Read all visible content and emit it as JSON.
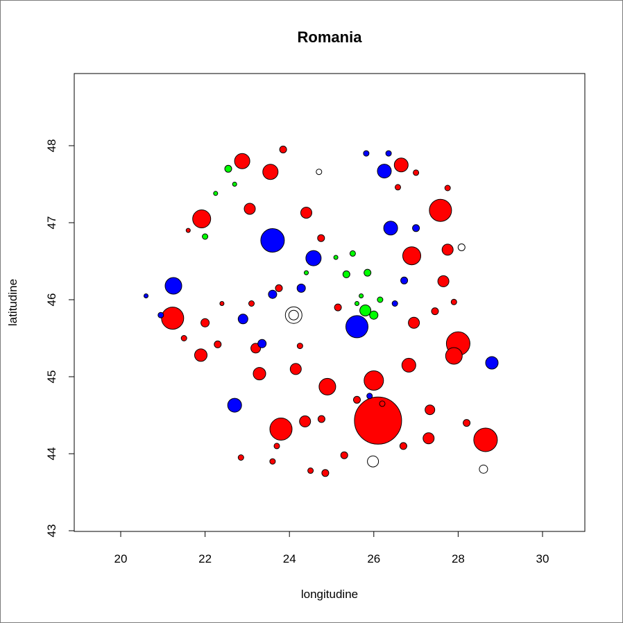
{
  "chart_data": {
    "type": "scatter",
    "title": "Romania",
    "xlabel": "longitudine",
    "ylabel": "latitudine",
    "xlim": [
      19,
      31
    ],
    "ylim": [
      43,
      49.2
    ],
    "xticks": [
      "20",
      "22",
      "24",
      "26",
      "28",
      "30"
    ],
    "yticks": [
      "43",
      "44",
      "45",
      "46",
      "47",
      "48"
    ],
    "grid": false,
    "legend": "none",
    "colors": {
      "red": "#ff0000",
      "blue": "#0000ff",
      "green": "#00ff00",
      "white": "#ffffff",
      "outline": "#000000"
    },
    "points": [
      {
        "x": 26.1,
        "y": 44.43,
        "s": 34,
        "c": "red"
      },
      {
        "x": 27.58,
        "y": 47.16,
        "s": 16,
        "c": "red"
      },
      {
        "x": 28.65,
        "y": 44.18,
        "s": 17,
        "c": "red"
      },
      {
        "x": 21.23,
        "y": 45.76,
        "s": 16,
        "c": "red"
      },
      {
        "x": 23.6,
        "y": 46.77,
        "s": 17,
        "c": "blue"
      },
      {
        "x": 23.8,
        "y": 44.32,
        "s": 16,
        "c": "red"
      },
      {
        "x": 25.6,
        "y": 45.65,
        "s": 16,
        "c": "blue"
      },
      {
        "x": 28.0,
        "y": 45.43,
        "s": 17,
        "c": "red"
      },
      {
        "x": 27.9,
        "y": 45.27,
        "s": 12,
        "c": "red"
      },
      {
        "x": 26.0,
        "y": 44.95,
        "s": 14,
        "c": "red"
      },
      {
        "x": 26.9,
        "y": 46.57,
        "s": 13,
        "c": "red"
      },
      {
        "x": 21.92,
        "y": 47.05,
        "s": 13,
        "c": "red"
      },
      {
        "x": 21.25,
        "y": 46.18,
        "s": 12,
        "c": "blue"
      },
      {
        "x": 24.57,
        "y": 46.54,
        "s": 11,
        "c": "blue"
      },
      {
        "x": 22.7,
        "y": 44.63,
        "s": 10,
        "c": "blue"
      },
      {
        "x": 24.9,
        "y": 44.87,
        "s": 12,
        "c": "red"
      },
      {
        "x": 26.83,
        "y": 45.15,
        "s": 10,
        "c": "red"
      },
      {
        "x": 26.4,
        "y": 46.93,
        "s": 10,
        "c": "blue"
      },
      {
        "x": 26.25,
        "y": 47.67,
        "s": 10,
        "c": "blue"
      },
      {
        "x": 28.8,
        "y": 45.18,
        "s": 9,
        "c": "blue"
      },
      {
        "x": 23.55,
        "y": 47.66,
        "s": 11,
        "c": "red"
      },
      {
        "x": 22.88,
        "y": 47.8,
        "s": 11,
        "c": "red"
      },
      {
        "x": 21.9,
        "y": 45.28,
        "s": 9,
        "c": "red"
      },
      {
        "x": 26.65,
        "y": 47.75,
        "s": 10,
        "c": "red"
      },
      {
        "x": 25.8,
        "y": 45.86,
        "s": 8,
        "c": "green"
      },
      {
        "x": 24.1,
        "y": 45.8,
        "s": 12,
        "c": "white"
      },
      {
        "x": 25.98,
        "y": 43.9,
        "s": 8,
        "c": "white"
      },
      {
        "x": 24.1,
        "y": 45.8,
        "s": 7,
        "c": "white"
      },
      {
        "x": 28.6,
        "y": 43.8,
        "s": 6,
        "c": "white"
      },
      {
        "x": 27.65,
        "y": 46.24,
        "s": 8,
        "c": "red"
      },
      {
        "x": 27.75,
        "y": 46.65,
        "s": 8,
        "c": "red"
      },
      {
        "x": 27.33,
        "y": 44.57,
        "s": 7,
        "c": "red"
      },
      {
        "x": 27.3,
        "y": 44.2,
        "s": 8,
        "c": "red"
      },
      {
        "x": 24.37,
        "y": 44.42,
        "s": 8,
        "c": "red"
      },
      {
        "x": 23.29,
        "y": 45.04,
        "s": 9,
        "c": "red"
      },
      {
        "x": 23.06,
        "y": 47.18,
        "s": 8,
        "c": "red"
      },
      {
        "x": 24.4,
        "y": 47.13,
        "s": 8,
        "c": "red"
      },
      {
        "x": 24.15,
        "y": 45.1,
        "s": 8,
        "c": "red"
      },
      {
        "x": 22.9,
        "y": 45.75,
        "s": 7,
        "c": "blue"
      },
      {
        "x": 23.2,
        "y": 45.37,
        "s": 7,
        "c": "red"
      },
      {
        "x": 26.95,
        "y": 45.7,
        "s": 8,
        "c": "red"
      },
      {
        "x": 26.0,
        "y": 45.8,
        "s": 6,
        "c": "green"
      },
      {
        "x": 22.0,
        "y": 45.7,
        "s": 6,
        "c": "red"
      },
      {
        "x": 22.3,
        "y": 45.42,
        "s": 5,
        "c": "red"
      },
      {
        "x": 23.35,
        "y": 45.43,
        "s": 6,
        "c": "blue"
      },
      {
        "x": 23.6,
        "y": 46.07,
        "s": 6,
        "c": "blue"
      },
      {
        "x": 24.28,
        "y": 46.15,
        "s": 6,
        "c": "blue"
      },
      {
        "x": 24.76,
        "y": 44.45,
        "s": 5,
        "c": "red"
      },
      {
        "x": 25.3,
        "y": 43.98,
        "s": 5,
        "c": "red"
      },
      {
        "x": 26.7,
        "y": 44.1,
        "s": 5,
        "c": "red"
      },
      {
        "x": 27.0,
        "y": 46.93,
        "s": 5,
        "c": "blue"
      },
      {
        "x": 26.72,
        "y": 46.25,
        "s": 5,
        "c": "blue"
      },
      {
        "x": 27.45,
        "y": 45.85,
        "s": 5,
        "c": "red"
      },
      {
        "x": 22.55,
        "y": 47.7,
        "s": 5,
        "c": "green"
      },
      {
        "x": 22.0,
        "y": 46.82,
        "s": 4,
        "c": "green"
      },
      {
        "x": 25.5,
        "y": 46.6,
        "s": 4,
        "c": "green"
      },
      {
        "x": 25.85,
        "y": 46.35,
        "s": 5,
        "c": "green"
      },
      {
        "x": 25.35,
        "y": 46.33,
        "s": 5,
        "c": "green"
      },
      {
        "x": 23.85,
        "y": 47.95,
        "s": 5,
        "c": "red"
      },
      {
        "x": 24.7,
        "y": 47.66,
        "s": 4,
        "c": "white"
      },
      {
        "x": 28.08,
        "y": 46.68,
        "s": 5,
        "c": "white"
      },
      {
        "x": 24.5,
        "y": 43.78,
        "s": 4,
        "c": "red"
      },
      {
        "x": 24.85,
        "y": 43.75,
        "s": 5,
        "c": "red"
      },
      {
        "x": 28.2,
        "y": 44.4,
        "s": 5,
        "c": "red"
      },
      {
        "x": 23.75,
        "y": 46.15,
        "s": 5,
        "c": "red"
      },
      {
        "x": 24.75,
        "y": 46.8,
        "s": 5,
        "c": "red"
      },
      {
        "x": 25.15,
        "y": 45.9,
        "s": 5,
        "c": "red"
      },
      {
        "x": 26.2,
        "y": 44.65,
        "s": 4,
        "c": "red"
      },
      {
        "x": 25.6,
        "y": 44.7,
        "s": 5,
        "c": "red"
      },
      {
        "x": 25.9,
        "y": 44.75,
        "s": 4,
        "c": "blue"
      },
      {
        "x": 26.5,
        "y": 45.95,
        "s": 4,
        "c": "blue"
      },
      {
        "x": 23.1,
        "y": 45.95,
        "s": 4,
        "c": "red"
      },
      {
        "x": 21.5,
        "y": 45.5,
        "s": 4,
        "c": "red"
      },
      {
        "x": 26.35,
        "y": 47.9,
        "s": 4,
        "c": "blue"
      },
      {
        "x": 26.57,
        "y": 47.46,
        "s": 4,
        "c": "red"
      },
      {
        "x": 25.82,
        "y": 47.9,
        "s": 4,
        "c": "blue"
      },
      {
        "x": 23.6,
        "y": 43.9,
        "s": 4,
        "c": "red"
      },
      {
        "x": 22.85,
        "y": 43.95,
        "s": 4,
        "c": "red"
      },
      {
        "x": 23.7,
        "y": 44.1,
        "s": 4,
        "c": "red"
      },
      {
        "x": 24.25,
        "y": 45.4,
        "s": 4,
        "c": "red"
      },
      {
        "x": 27.9,
        "y": 45.97,
        "s": 4,
        "c": "red"
      },
      {
        "x": 27.75,
        "y": 47.45,
        "s": 4,
        "c": "red"
      },
      {
        "x": 27.0,
        "y": 47.65,
        "s": 4,
        "c": "red"
      },
      {
        "x": 22.4,
        "y": 45.95,
        "s": 3,
        "c": "red"
      },
      {
        "x": 20.95,
        "y": 45.8,
        "s": 4,
        "c": "blue"
      },
      {
        "x": 20.6,
        "y": 46.05,
        "s": 3,
        "c": "blue"
      },
      {
        "x": 21.6,
        "y": 46.9,
        "s": 3,
        "c": "red"
      },
      {
        "x": 22.25,
        "y": 47.38,
        "s": 3,
        "c": "green"
      },
      {
        "x": 22.7,
        "y": 47.5,
        "s": 3,
        "c": "green"
      },
      {
        "x": 25.7,
        "y": 46.05,
        "s": 3,
        "c": "green"
      },
      {
        "x": 26.15,
        "y": 46.0,
        "s": 4,
        "c": "green"
      },
      {
        "x": 24.4,
        "y": 46.35,
        "s": 3,
        "c": "green"
      },
      {
        "x": 25.1,
        "y": 46.55,
        "s": 3,
        "c": "green"
      },
      {
        "x": 25.6,
        "y": 45.95,
        "s": 3,
        "c": "green"
      }
    ]
  }
}
